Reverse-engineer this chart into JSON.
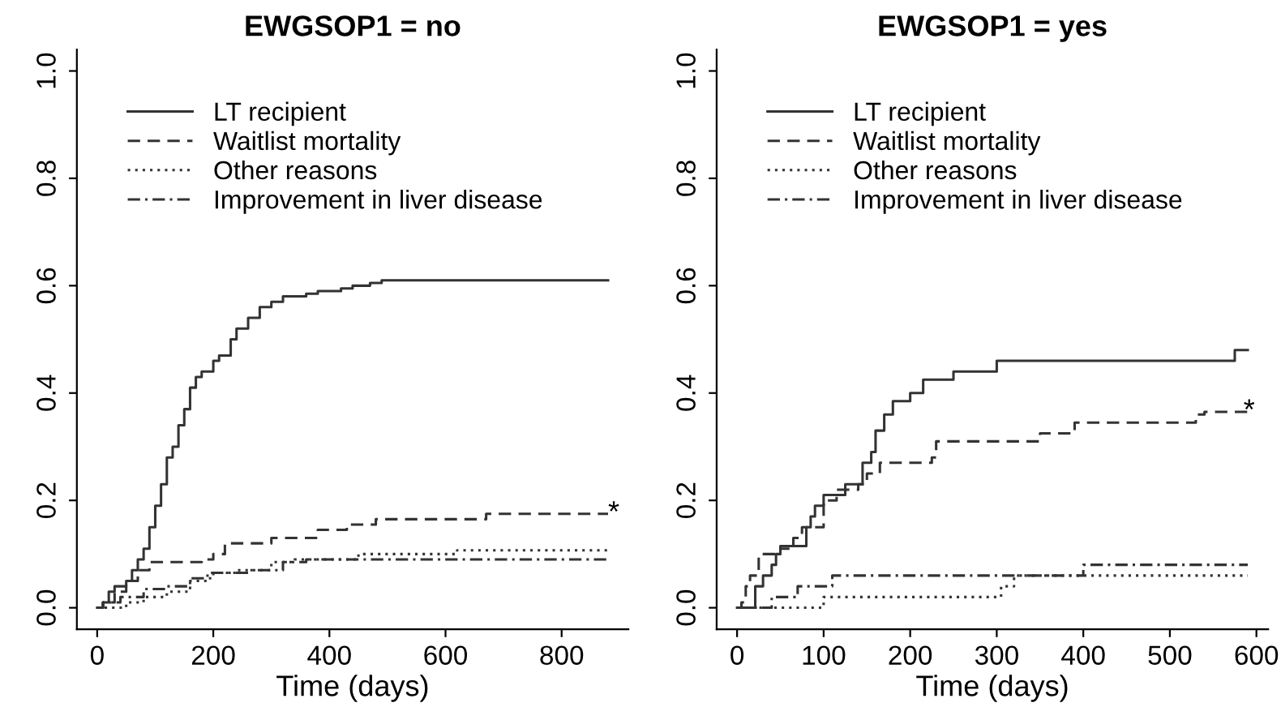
{
  "chart_data": [
    {
      "type": "step",
      "title": "EWGSOP1 = no",
      "xlabel": "Time (days)",
      "xlim": [
        -35,
        915
      ],
      "xticks": [
        0,
        200,
        400,
        600,
        800
      ],
      "ylim": [
        -0.04,
        1.04
      ],
      "yticks": [
        {
          "value": 0,
          "label": "0.0"
        },
        {
          "value": 0.2,
          "label": "0.2"
        },
        {
          "value": 0.4,
          "label": "0.4"
        },
        {
          "value": 0.6,
          "label": "0.6"
        },
        {
          "value": 0.8,
          "label": "0.8"
        },
        {
          "value": 1,
          "label": "1.0"
        }
      ],
      "legend": "top left",
      "annotations": [
        {
          "text": "*",
          "x": 880,
          "y": 0.175
        }
      ],
      "series": [
        {
          "name": "LT recipient",
          "color": "#333333",
          "line_style": "solid",
          "x": [
            0,
            10,
            20,
            30,
            50,
            60,
            70,
            80,
            90,
            100,
            110,
            120,
            130,
            140,
            150,
            160,
            170,
            180,
            200,
            210,
            230,
            240,
            260,
            280,
            300,
            320,
            360,
            380,
            420,
            440,
            470,
            490,
            880
          ],
          "values": [
            0,
            0.01,
            0.03,
            0.04,
            0.05,
            0.07,
            0.09,
            0.11,
            0.15,
            0.19,
            0.23,
            0.28,
            0.3,
            0.34,
            0.37,
            0.41,
            0.43,
            0.44,
            0.46,
            0.47,
            0.5,
            0.52,
            0.54,
            0.56,
            0.57,
            0.58,
            0.585,
            0.59,
            0.595,
            0.6,
            0.605,
            0.61,
            0.61
          ]
        },
        {
          "name": "Waitlist mortality",
          "color": "#333333",
          "line_style": "dashed",
          "x": [
            0,
            10,
            30,
            50,
            70,
            90,
            180,
            200,
            220,
            300,
            380,
            430,
            480,
            670,
            880
          ],
          "values": [
            0,
            0.01,
            0.03,
            0.05,
            0.07,
            0.085,
            0.09,
            0.1,
            0.12,
            0.13,
            0.145,
            0.155,
            0.165,
            0.175,
            0.175
          ]
        },
        {
          "name": "Other reasons",
          "color": "#333333",
          "line_style": "dotted",
          "x": [
            0,
            50,
            80,
            120,
            160,
            190,
            240,
            300,
            340,
            450,
            620,
            880
          ],
          "values": [
            0,
            0.01,
            0.02,
            0.03,
            0.05,
            0.065,
            0.07,
            0.085,
            0.09,
            0.1,
            0.107,
            0.107
          ]
        },
        {
          "name": "Improvement in liver disease",
          "color": "#333333",
          "line_style": "dashdot",
          "x": [
            0,
            10,
            40,
            80,
            120,
            160,
            200,
            260,
            320,
            360,
            880
          ],
          "values": [
            0,
            0.01,
            0.02,
            0.035,
            0.04,
            0.055,
            0.065,
            0.07,
            0.085,
            0.09,
            0.09
          ]
        }
      ]
    },
    {
      "type": "step",
      "title": "EWGSOP1 = yes",
      "xlabel": "Time (days)",
      "xlim": [
        -23.6,
        613.6
      ],
      "xticks": [
        0,
        100,
        200,
        300,
        400,
        500,
        600
      ],
      "ylim": [
        -0.04,
        1.04
      ],
      "yticks": [
        {
          "value": 0,
          "label": "0.0"
        },
        {
          "value": 0.2,
          "label": "0.2"
        },
        {
          "value": 0.4,
          "label": "0.4"
        },
        {
          "value": 0.6,
          "label": "0.6"
        },
        {
          "value": 0.8,
          "label": "0.8"
        },
        {
          "value": 1,
          "label": "1.0"
        }
      ],
      "legend": "top left",
      "annotations": [
        {
          "text": "*",
          "x": 585,
          "y": 0.365
        }
      ],
      "series": [
        {
          "name": "LT recipient",
          "color": "#333333",
          "line_style": "solid",
          "x": [
            0,
            21,
            30,
            40,
            45,
            50,
            75,
            80,
            85,
            90,
            100,
            120,
            125,
            140,
            145,
            155,
            160,
            170,
            180,
            200,
            215,
            250,
            300,
            570,
            575,
            590
          ],
          "values": [
            0,
            0.04,
            0.06,
            0.08,
            0.1,
            0.115,
            0.115,
            0.15,
            0.17,
            0.19,
            0.21,
            0.21,
            0.23,
            0.23,
            0.27,
            0.29,
            0.33,
            0.36,
            0.385,
            0.4,
            0.425,
            0.44,
            0.46,
            0.46,
            0.48,
            0.48
          ]
        },
        {
          "name": "Waitlist mortality",
          "color": "#333333",
          "line_style": "dashed",
          "x": [
            0,
            5,
            10,
            15,
            25,
            40,
            50,
            65,
            75,
            100,
            115,
            140,
            150,
            165,
            225,
            230,
            350,
            390,
            530,
            540,
            590
          ],
          "values": [
            0,
            0.01,
            0.04,
            0.06,
            0.1,
            0.1,
            0.11,
            0.13,
            0.15,
            0.2,
            0.22,
            0.23,
            0.25,
            0.27,
            0.28,
            0.31,
            0.325,
            0.345,
            0.36,
            0.365,
            0.365
          ]
        },
        {
          "name": "Other reasons",
          "color": "#333333",
          "line_style": "dotted",
          "x": [
            0,
            100,
            300,
            305,
            320,
            590
          ],
          "values": [
            0,
            0.02,
            0.02,
            0.04,
            0.06,
            0.06
          ]
        },
        {
          "name": "Improvement in liver disease",
          "color": "#333333",
          "line_style": "dashdot",
          "x": [
            0,
            40,
            70,
            110,
            390,
            400,
            590
          ],
          "values": [
            0,
            0.02,
            0.04,
            0.06,
            0.06,
            0.08,
            0.08
          ]
        }
      ]
    }
  ]
}
